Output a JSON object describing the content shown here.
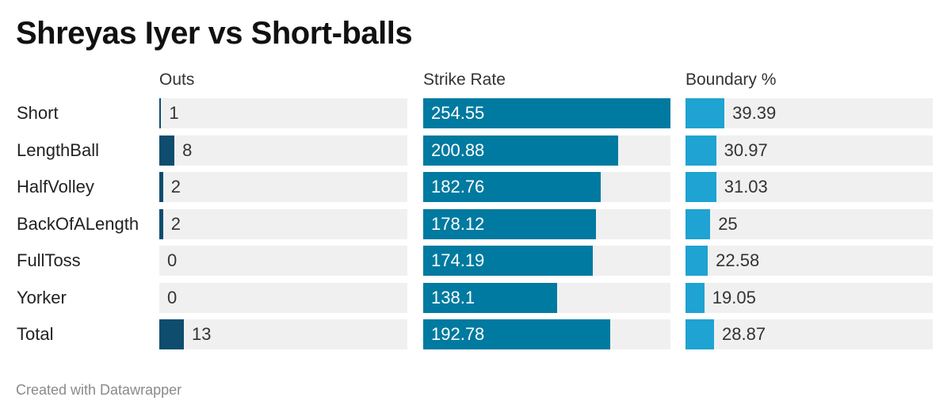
{
  "chart_data": {
    "type": "table",
    "title": "Shreyas Iyer vs Short-balls",
    "categories": [
      "Short",
      "LengthBall",
      "HalfVolley",
      "BackOfALength",
      "FullToss",
      "Yorker",
      "Total"
    ],
    "series": [
      {
        "name": "Outs",
        "values": [
          1,
          8,
          2,
          2,
          0,
          0,
          13
        ],
        "labels": [
          "1",
          "8",
          "2",
          "2",
          "0",
          "0",
          "13"
        ],
        "max": 131,
        "label_inside": false,
        "color": "#0e4d6e"
      },
      {
        "name": "Strike Rate",
        "values": [
          254.55,
          200.88,
          182.76,
          178.12,
          174.19,
          138.1,
          192.78
        ],
        "labels": [
          "254.55",
          "200.88",
          "182.76",
          "178.12",
          "174.19",
          "138.1",
          "192.78"
        ],
        "max": 254.55,
        "label_inside": true,
        "color": "#007aa0"
      },
      {
        "name": "Boundary %",
        "values": [
          39.39,
          30.97,
          31.03,
          25,
          22.58,
          19.05,
          28.87
        ],
        "labels": [
          "39.39",
          "30.97",
          "31.03",
          "25",
          "22.58",
          "19.05",
          "28.87"
        ],
        "max": 250,
        "label_inside": false,
        "color": "#1ea3d2"
      }
    ],
    "track_color": "#f0f0f0"
  },
  "footer": "Created with Datawrapper"
}
